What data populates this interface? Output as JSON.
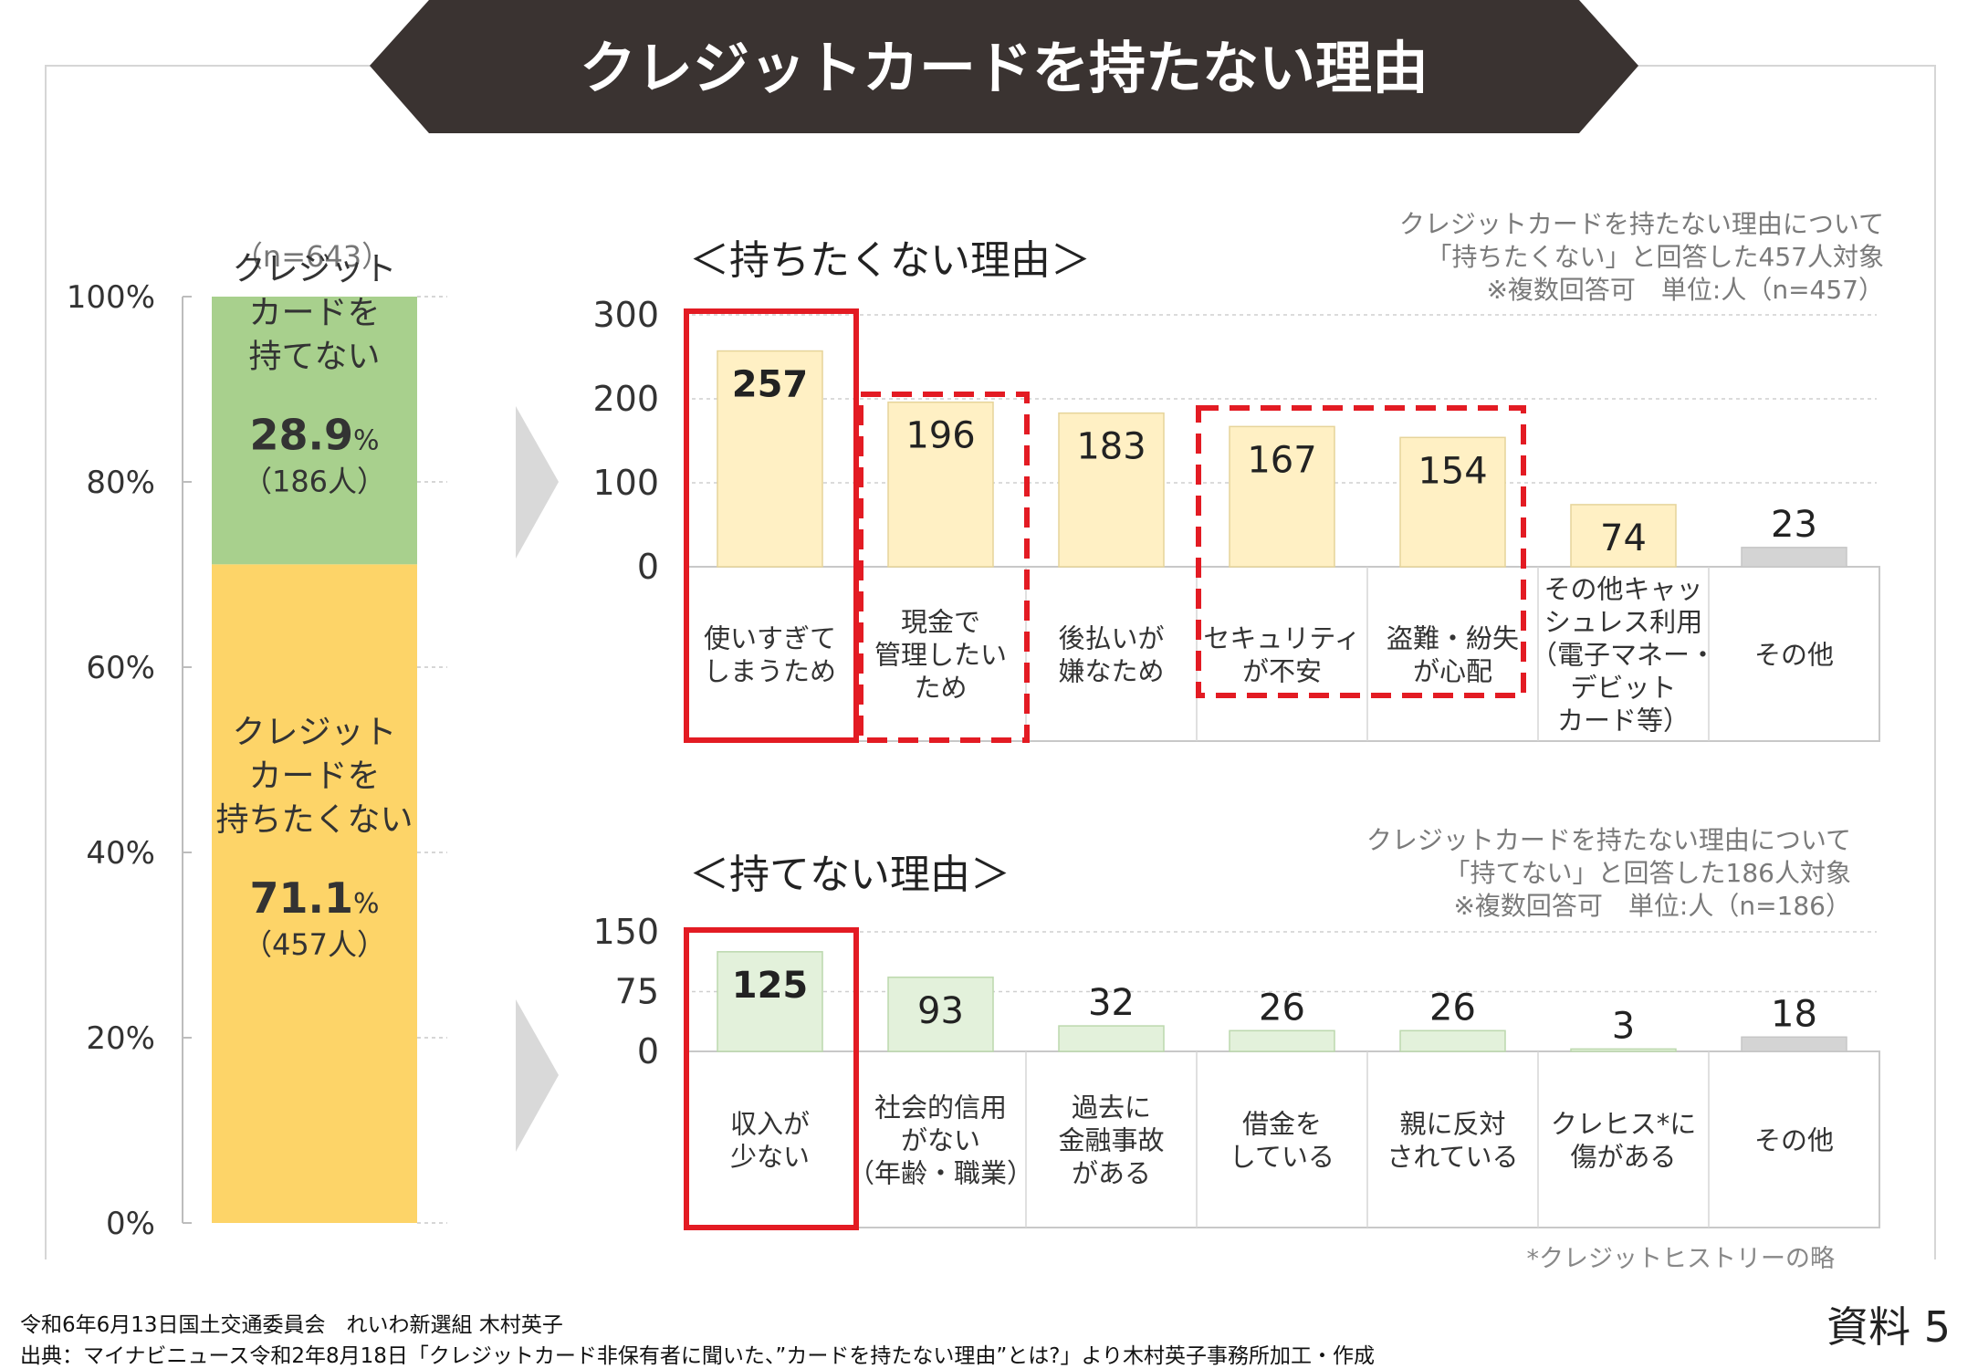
{
  "title": "クレジットカードを持たない理由",
  "colors": {
    "banner": "#3a3331",
    "stack_top": "#fdd468",
    "stack_bottom": "#a8d08d",
    "bar_top": "#fff0c4",
    "bar_top_border": "#e6d49a",
    "bar_bottom": "#e3f1db",
    "bar_bottom_border": "#bcd8ad",
    "bar_other": "#d4d4d4",
    "highlight_red": "#e31b23",
    "arrow": "#d9d9d9"
  },
  "chart_data": [
    {
      "type": "bar",
      "stacked": true,
      "n_label": "（n=643）",
      "yticks": [
        "100%",
        "80%",
        "60%",
        "40%",
        "20%",
        "0%"
      ],
      "ylim": [
        0,
        100
      ],
      "segments": [
        {
          "value": 71.1,
          "label_lines": [
            "クレジット",
            "カードを",
            "持ちたくない"
          ],
          "pct_num": "71.1",
          "pct_unit": "%",
          "count": "（457人）"
        },
        {
          "value": 28.9,
          "label_lines": [
            "クレジット",
            "カードを",
            "持てない"
          ],
          "pct_num": "28.9",
          "pct_unit": "%",
          "count": "（186人）"
        }
      ]
    },
    {
      "type": "bar",
      "title": "＜持ちたくない理由＞",
      "note_lines": [
        "クレジットカードを持たない理由について",
        "「持ちたくない」と回答した457人対象",
        "※複数回答可　単位:人（n=457）"
      ],
      "yticks": [
        "300",
        "200",
        "100",
        "0"
      ],
      "ylim": [
        0,
        300
      ],
      "values": [
        257,
        196,
        183,
        167,
        154,
        74,
        23
      ],
      "value_labels": [
        "257",
        "196",
        "183",
        "167",
        "154",
        "74",
        "23"
      ],
      "categories": [
        [
          "使いすぎて",
          "しまうため"
        ],
        [
          "現金で",
          "管理したい",
          "ため"
        ],
        [
          "後払いが",
          "嫌なため"
        ],
        [
          "セキュリティ",
          "が不安"
        ],
        [
          "盗難・紛失",
          "が心配"
        ],
        [
          "その他キャッ",
          "シュレス利用",
          "（電子マネー・",
          "デビット",
          "カード等）"
        ],
        [
          "その他"
        ]
      ]
    },
    {
      "type": "bar",
      "title": "＜持てない理由＞",
      "note_lines": [
        "クレジットカードを持たない理由について",
        "「持てない」と回答した186人対象",
        "※複数回答可　単位:人（n=186）"
      ],
      "yticks": [
        "150",
        "75",
        "0"
      ],
      "ylim": [
        0,
        150
      ],
      "values": [
        125,
        93,
        32,
        26,
        26,
        3,
        18
      ],
      "value_labels": [
        "125",
        "93",
        "32",
        "26",
        "26",
        "3",
        "18"
      ],
      "categories": [
        [
          "収入が",
          "少ない"
        ],
        [
          "社会的信用",
          "がない",
          "（年齢・職業）"
        ],
        [
          "過去に",
          "金融事故",
          "がある"
        ],
        [
          "借金を",
          "している"
        ],
        [
          "親に反対",
          "されている"
        ],
        [
          "クレヒス*に",
          "傷がある"
        ],
        [
          "その他"
        ]
      ],
      "footnote": "*クレジットヒストリーの略"
    }
  ],
  "footer": {
    "line1": "令和6年6月13日国土交通委員会　れいわ新選組 木村英子",
    "line2": "出典：マイナビニュース令和2年8月18日「クレジットカード非保有者に聞いた、”カードを持たない理由”とは?」より木村英子事務所加工・作成",
    "doc_label": "資料 5"
  }
}
